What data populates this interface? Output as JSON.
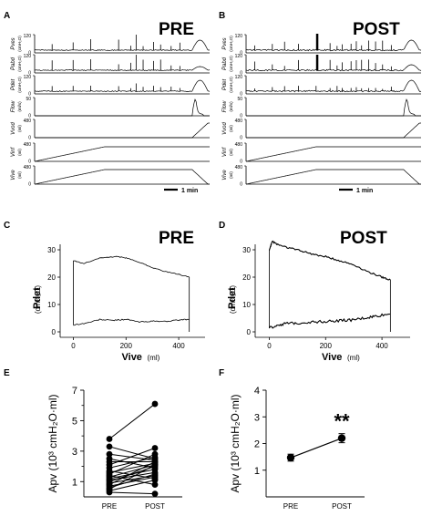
{
  "chart_data": [
    {
      "panel": "A",
      "type": "line",
      "title": "PRE",
      "channels": [
        {
          "label": "Pves",
          "unit": "(cmH₂O)",
          "ticks": [
            "120",
            "0"
          ],
          "ylim": [
            0,
            120
          ]
        },
        {
          "label": "Pabd",
          "unit": "(cmH₂O)",
          "ticks": [
            "120",
            "0"
          ],
          "ylim": [
            0,
            120
          ]
        },
        {
          "label": "Pdet",
          "unit": "(cmH₂O)",
          "ticks": [
            "120",
            "0"
          ],
          "ylim": [
            0,
            120
          ]
        },
        {
          "label": "Flow",
          "unit": "(ml/s)",
          "ticks": [
            "50",
            "0"
          ],
          "ylim": [
            0,
            50
          ]
        },
        {
          "label": "Vvod",
          "unit": "(ml)",
          "ticks": [
            "480",
            "0"
          ],
          "ylim": [
            0,
            480
          ]
        },
        {
          "label": "Vinf",
          "unit": "(ml)",
          "ticks": [
            "480",
            "0"
          ],
          "ylim": [
            0,
            480
          ]
        },
        {
          "label": "Vive",
          "unit": "(ml)",
          "ticks": [
            "480",
            "0"
          ],
          "ylim": [
            0,
            480
          ]
        }
      ],
      "scale_bar": "1 min"
    },
    {
      "panel": "B",
      "type": "line",
      "title": "POST",
      "channels": [
        {
          "label": "Pves",
          "unit": "(cmH₂O)",
          "ticks": [
            "120",
            "0"
          ],
          "ylim": [
            0,
            120
          ]
        },
        {
          "label": "Pabd",
          "unit": "(cmH₂O)",
          "ticks": [
            "120",
            "0"
          ],
          "ylim": [
            0,
            120
          ]
        },
        {
          "label": "Pdet",
          "unit": "(cmH₂O)",
          "ticks": [
            "120",
            "0"
          ],
          "ylim": [
            0,
            120
          ]
        },
        {
          "label": "Flow",
          "unit": "(ml/s)",
          "ticks": [
            "50",
            "0"
          ],
          "ylim": [
            0,
            50
          ]
        },
        {
          "label": "Vvod",
          "unit": "(ml)",
          "ticks": [
            "480",
            "0"
          ],
          "ylim": [
            0,
            480
          ]
        },
        {
          "label": "Vinf",
          "unit": "(ml)",
          "ticks": [
            "480",
            "0"
          ],
          "ylim": [
            0,
            480
          ]
        },
        {
          "label": "Vive",
          "unit": "(ml)",
          "ticks": [
            "480",
            "0"
          ],
          "ylim": [
            0,
            480
          ]
        }
      ],
      "scale_bar": "1 min"
    },
    {
      "panel": "C",
      "type": "line",
      "title": "PRE",
      "xlabel": "Vive",
      "xunit": "(ml)",
      "ylabel": "Pdet",
      "yunit": "(cmH₂O)",
      "xlim": [
        -50,
        500
      ],
      "ylim": [
        -2,
        32
      ],
      "xticks": [
        0,
        200,
        400
      ],
      "yticks": [
        0,
        10,
        20,
        30
      ],
      "filling_curve": {
        "x": [
          0,
          50,
          100,
          150,
          200,
          250,
          300,
          350,
          400,
          440
        ],
        "y": [
          2.5,
          3.2,
          4.5,
          4.2,
          4.6,
          3.6,
          3.9,
          3.8,
          4.3,
          4.6
        ]
      },
      "voiding_curve": {
        "x": [
          0,
          40,
          100,
          170,
          200,
          250,
          300,
          350,
          400,
          440
        ],
        "y": [
          26,
          25,
          27,
          27.5,
          27,
          25.5,
          23.5,
          22,
          21,
          20
        ]
      }
    },
    {
      "panel": "D",
      "type": "line",
      "title": "POST",
      "xlabel": "Vive",
      "xunit": "(ml)",
      "ylabel": "Pdet",
      "yunit": "(cmH₂O)",
      "xlim": [
        -50,
        500
      ],
      "ylim": [
        -2,
        32
      ],
      "xticks": [
        0,
        200,
        400
      ],
      "yticks": [
        0,
        10,
        20,
        30
      ],
      "filling_curve": {
        "x": [
          0,
          30,
          60,
          100,
          150,
          200,
          250,
          300,
          350,
          380,
          430
        ],
        "y": [
          1.3,
          2.5,
          3.0,
          3.2,
          3.6,
          3.8,
          4.1,
          4.4,
          5.2,
          5.8,
          6.5
        ]
      },
      "voiding_curve": {
        "x": [
          0,
          10,
          30,
          60,
          100,
          150,
          200,
          250,
          300,
          350,
          400,
          430
        ],
        "y": [
          30,
          33,
          32,
          31,
          30,
          28.5,
          27.5,
          26,
          24.5,
          22,
          20,
          19
        ]
      }
    },
    {
      "panel": "E",
      "type": "scatter",
      "ylabel": "Apv (10³ cmH₂O·ml)",
      "categories": [
        "PRE",
        "POST"
      ],
      "ylim": [
        0,
        7
      ],
      "yticks": [
        1,
        3,
        5,
        7
      ],
      "yminor": [
        2,
        4,
        6
      ],
      "pairs": [
        [
          3.8,
          6.1
        ],
        [
          3.3,
          2.5
        ],
        [
          2.8,
          2.4
        ],
        [
          2.5,
          1.9
        ],
        [
          2.3,
          2.3
        ],
        [
          2.1,
          3.2
        ],
        [
          1.9,
          2.6
        ],
        [
          1.7,
          1.2
        ],
        [
          1.5,
          2.8
        ],
        [
          1.4,
          0.8
        ],
        [
          1.3,
          2.1
        ],
        [
          1.2,
          1.8
        ],
        [
          1.1,
          1.6
        ],
        [
          1.0,
          2.0
        ],
        [
          0.9,
          1.4
        ],
        [
          0.8,
          2.3
        ],
        [
          0.7,
          1.3
        ],
        [
          0.6,
          1.5
        ],
        [
          0.5,
          2.1
        ],
        [
          0.4,
          1.1
        ],
        [
          0.3,
          0.2
        ],
        [
          1.6,
          2.2
        ]
      ]
    },
    {
      "panel": "F",
      "type": "line",
      "ylabel": "Apv (10³ cmH₂O·ml)",
      "categories": [
        "PRE",
        "POST"
      ],
      "ylim": [
        0,
        4
      ],
      "yticks": [
        1,
        2,
        3,
        4
      ],
      "means": [
        1.47,
        2.2
      ],
      "errors": [
        0.13,
        0.17
      ],
      "annotation": "**"
    }
  ]
}
